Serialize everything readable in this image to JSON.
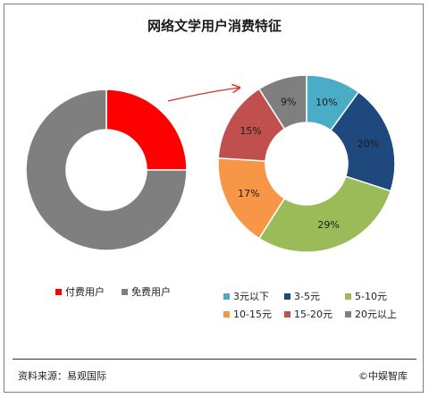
{
  "title": "网络文学用户消费特征",
  "source": "资料来源：易观国际",
  "copyright": "©中娱智库",
  "chart_data": [
    {
      "type": "donut",
      "slices": [
        {
          "name": "付费用户",
          "value": 25,
          "color": "#ff0000"
        },
        {
          "name": "免费用户",
          "value": 75,
          "color": "#7f7f7f"
        }
      ],
      "legend": [
        {
          "name": "付费用户",
          "color": "#ff0000"
        },
        {
          "name": "免费用户",
          "color": "#7f7f7f"
        }
      ]
    },
    {
      "type": "donut",
      "slices": [
        {
          "name": "3元以下",
          "value": 10,
          "label": "10%",
          "color": "#4bacc6"
        },
        {
          "name": "3-5元",
          "value": 20,
          "label": "20%",
          "color": "#1f497d"
        },
        {
          "name": "5-10元",
          "value": 29,
          "label": "29%",
          "color": "#9bbb59"
        },
        {
          "name": "10-15元",
          "value": 17,
          "label": "17%",
          "color": "#f79646"
        },
        {
          "name": "15-20元",
          "value": 15,
          "label": "15%",
          "color": "#c0504d"
        },
        {
          "name": "20元以上",
          "value": 9,
          "label": "9%",
          "color": "#7f7f7f"
        }
      ],
      "legend": [
        {
          "name": "3元以下",
          "color": "#4bacc6"
        },
        {
          "name": "3-5元",
          "color": "#1f497d"
        },
        {
          "name": "5-10元",
          "color": "#9bbb59"
        },
        {
          "name": "10-15元",
          "color": "#f79646"
        },
        {
          "name": "15-20元",
          "color": "#c0504d"
        },
        {
          "name": "20元以上",
          "color": "#7f7f7f"
        }
      ]
    }
  ]
}
